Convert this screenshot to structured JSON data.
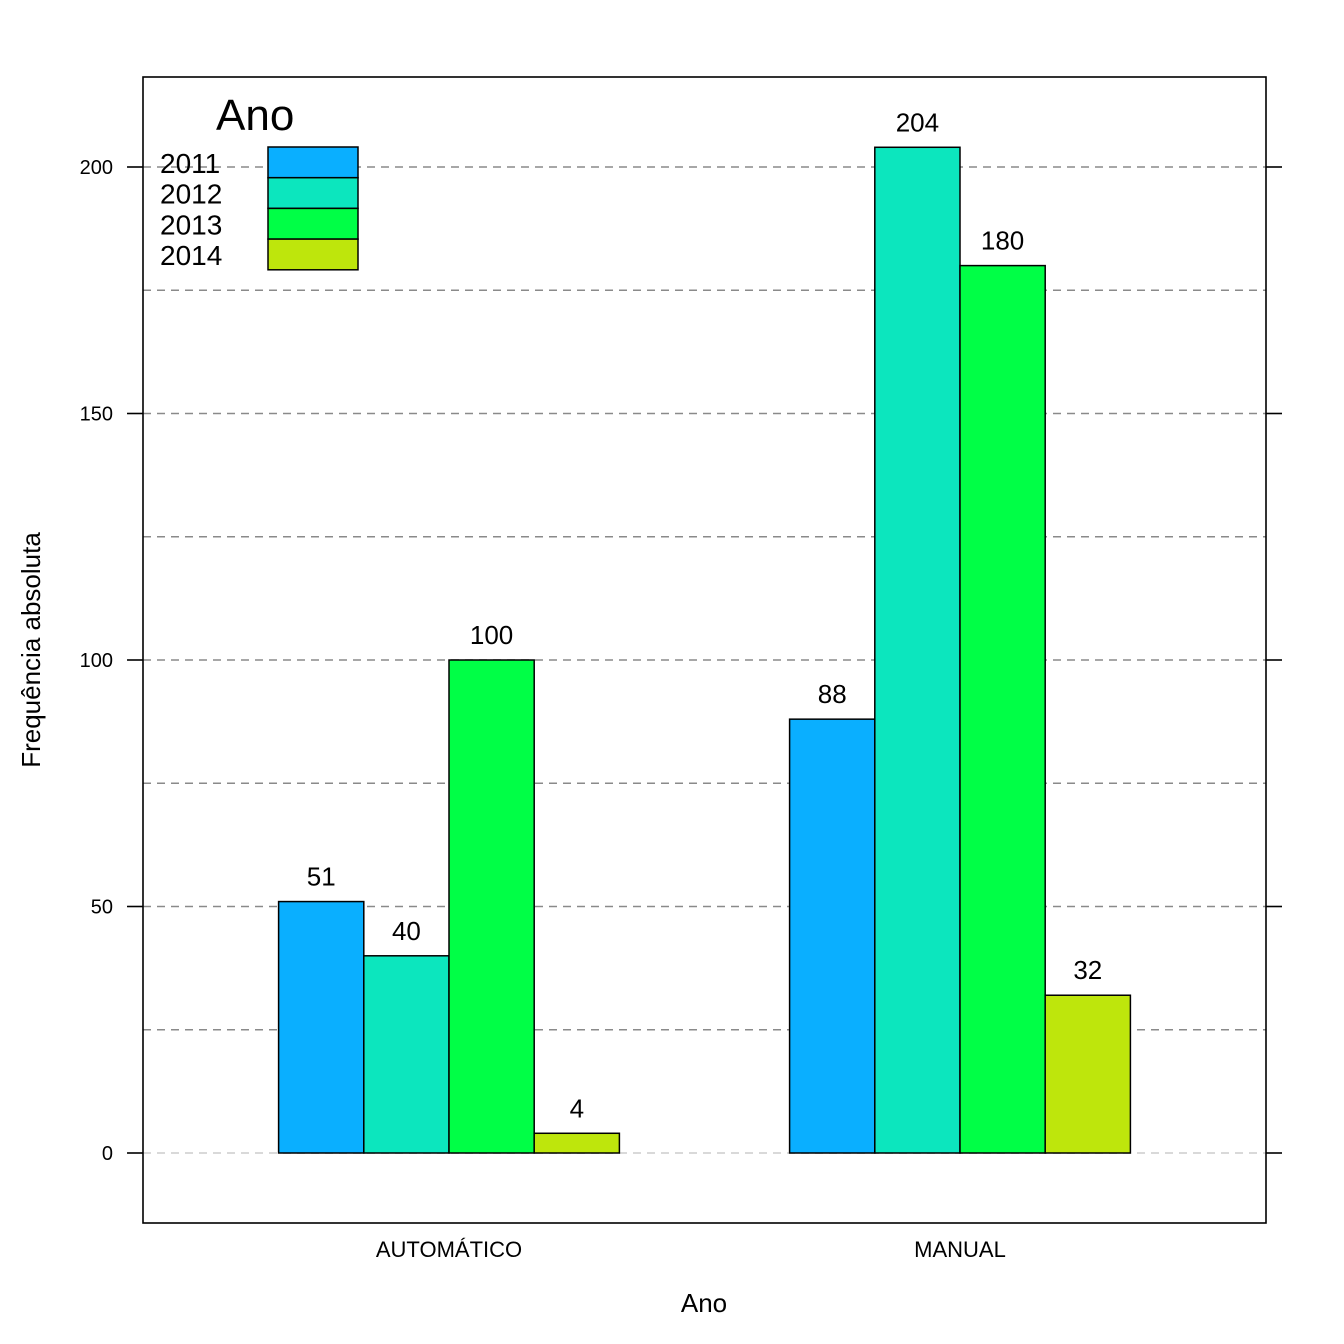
{
  "chart_data": {
    "type": "bar",
    "xlabel": "Ano",
    "ylabel": "Frequência absoluta",
    "categories": [
      "AUTOMÁTICO",
      "MANUAL"
    ],
    "series": [
      {
        "name": "2011",
        "values": [
          51,
          88
        ],
        "color": "#0AAFFF"
      },
      {
        "name": "2012",
        "values": [
          40,
          204
        ],
        "color": "#0CE6BE"
      },
      {
        "name": "2013",
        "values": [
          100,
          180
        ],
        "color": "#00FF46"
      },
      {
        "name": "2014",
        "values": [
          4,
          32
        ],
        "color": "#BEE60C"
      }
    ],
    "ylim": [
      -14,
      218
    ],
    "yticks": [
      0,
      50,
      100,
      150,
      200
    ],
    "gridlines": [
      0,
      25,
      50,
      75,
      100,
      125,
      150,
      175,
      200
    ],
    "grid": true,
    "legend": {
      "title": "Ano",
      "position": "top-left"
    }
  }
}
